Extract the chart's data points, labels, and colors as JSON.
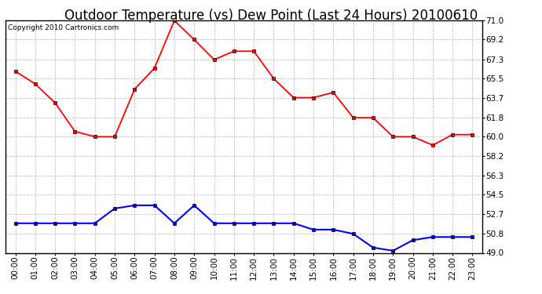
{
  "title": "Outdoor Temperature (vs) Dew Point (Last 24 Hours) 20100610",
  "copyright": "Copyright 2010 Cartronics.com",
  "x_labels": [
    "00:00",
    "01:00",
    "02:00",
    "03:00",
    "04:00",
    "05:00",
    "06:00",
    "07:00",
    "08:00",
    "09:00",
    "10:00",
    "11:00",
    "12:00",
    "13:00",
    "14:00",
    "15:00",
    "16:00",
    "17:00",
    "18:00",
    "19:00",
    "20:00",
    "21:00",
    "22:00",
    "23:00"
  ],
  "temp_values": [
    66.2,
    65.0,
    63.2,
    60.5,
    60.0,
    60.0,
    64.5,
    66.5,
    71.0,
    69.2,
    67.3,
    68.1,
    68.1,
    65.5,
    63.7,
    63.7,
    64.2,
    61.8,
    61.8,
    60.0,
    60.0,
    59.2,
    60.2,
    60.2
  ],
  "dew_values": [
    51.8,
    51.8,
    51.8,
    51.8,
    51.8,
    53.2,
    53.5,
    53.5,
    51.8,
    53.5,
    51.8,
    51.8,
    51.8,
    51.8,
    51.8,
    51.2,
    51.2,
    50.8,
    49.5,
    49.2,
    50.2,
    50.5,
    50.5,
    50.5
  ],
  "temp_color": "#ff0000",
  "dew_color": "#0000ff",
  "bg_color": "#ffffff",
  "plot_bg_color": "#ffffff",
  "grid_color": "#bbbbbb",
  "ylim_min": 49.0,
  "ylim_max": 71.0,
  "yticks": [
    49.0,
    50.8,
    52.7,
    54.5,
    56.3,
    58.2,
    60.0,
    61.8,
    63.7,
    65.5,
    67.3,
    69.2,
    71.0
  ],
  "title_fontsize": 12,
  "copyright_fontsize": 6.5,
  "tick_fontsize": 7.5
}
